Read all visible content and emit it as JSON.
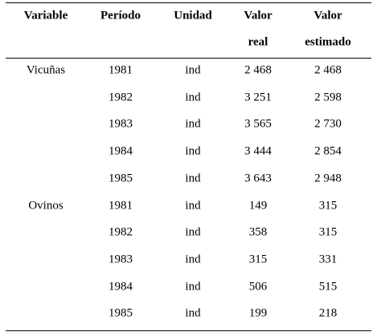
{
  "table": {
    "header": [
      [
        "Variable"
      ],
      [
        "Período"
      ],
      [
        "Unidad"
      ],
      [
        "Valor",
        "real"
      ],
      [
        "Valor",
        "estimado"
      ]
    ],
    "groups": [
      {
        "variable": "Vicuñas",
        "rows": [
          [
            "1981",
            "ind",
            "2 468",
            "2 468"
          ],
          [
            "1982",
            "ind",
            "3 251",
            "2 598"
          ],
          [
            "1983",
            "ind",
            "3 565",
            "2 730"
          ],
          [
            "1984",
            "ind",
            "3 444",
            "2 854"
          ],
          [
            "1985",
            "ind",
            "3 643",
            "2 948"
          ]
        ]
      },
      {
        "variable": "Ovinos",
        "rows": [
          [
            "1981",
            "ind",
            "149",
            "315"
          ],
          [
            "1982",
            "ind",
            "358",
            "315"
          ],
          [
            "1983",
            "ind",
            "315",
            "331"
          ],
          [
            "1984",
            "ind",
            "506",
            "515"
          ],
          [
            "1985",
            "ind",
            "199",
            "218"
          ]
        ]
      }
    ]
  }
}
